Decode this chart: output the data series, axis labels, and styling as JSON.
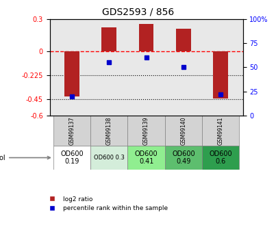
{
  "title": "GDS2593 / 856",
  "samples": [
    "GSM99137",
    "GSM99138",
    "GSM99139",
    "GSM99140",
    "GSM99141"
  ],
  "log2_ratio": [
    -0.42,
    0.22,
    0.25,
    0.21,
    -0.44
  ],
  "percentile_rank": [
    20,
    55,
    60,
    50,
    22
  ],
  "growth_protocol": [
    "OD600\n0.19",
    "OD600 0.3",
    "OD600\n0.41",
    "OD600\n0.49",
    "OD600\n0.6"
  ],
  "growth_bg": [
    "#ffffff",
    "#d4edda",
    "#90ee90",
    "#5dbe6e",
    "#2e9e4e"
  ],
  "growth_fontsize": [
    7,
    6,
    7,
    7,
    7
  ],
  "ylim": [
    -0.6,
    0.3
  ],
  "yticks_left": [
    0.3,
    0,
    -0.225,
    -0.45,
    -0.6
  ],
  "yticks_right": [
    100,
    75,
    50,
    25,
    0
  ],
  "bar_color": "#b22222",
  "dot_color": "#0000cc",
  "dotted_lines": [
    -0.225,
    -0.45
  ],
  "bar_width": 0.4
}
